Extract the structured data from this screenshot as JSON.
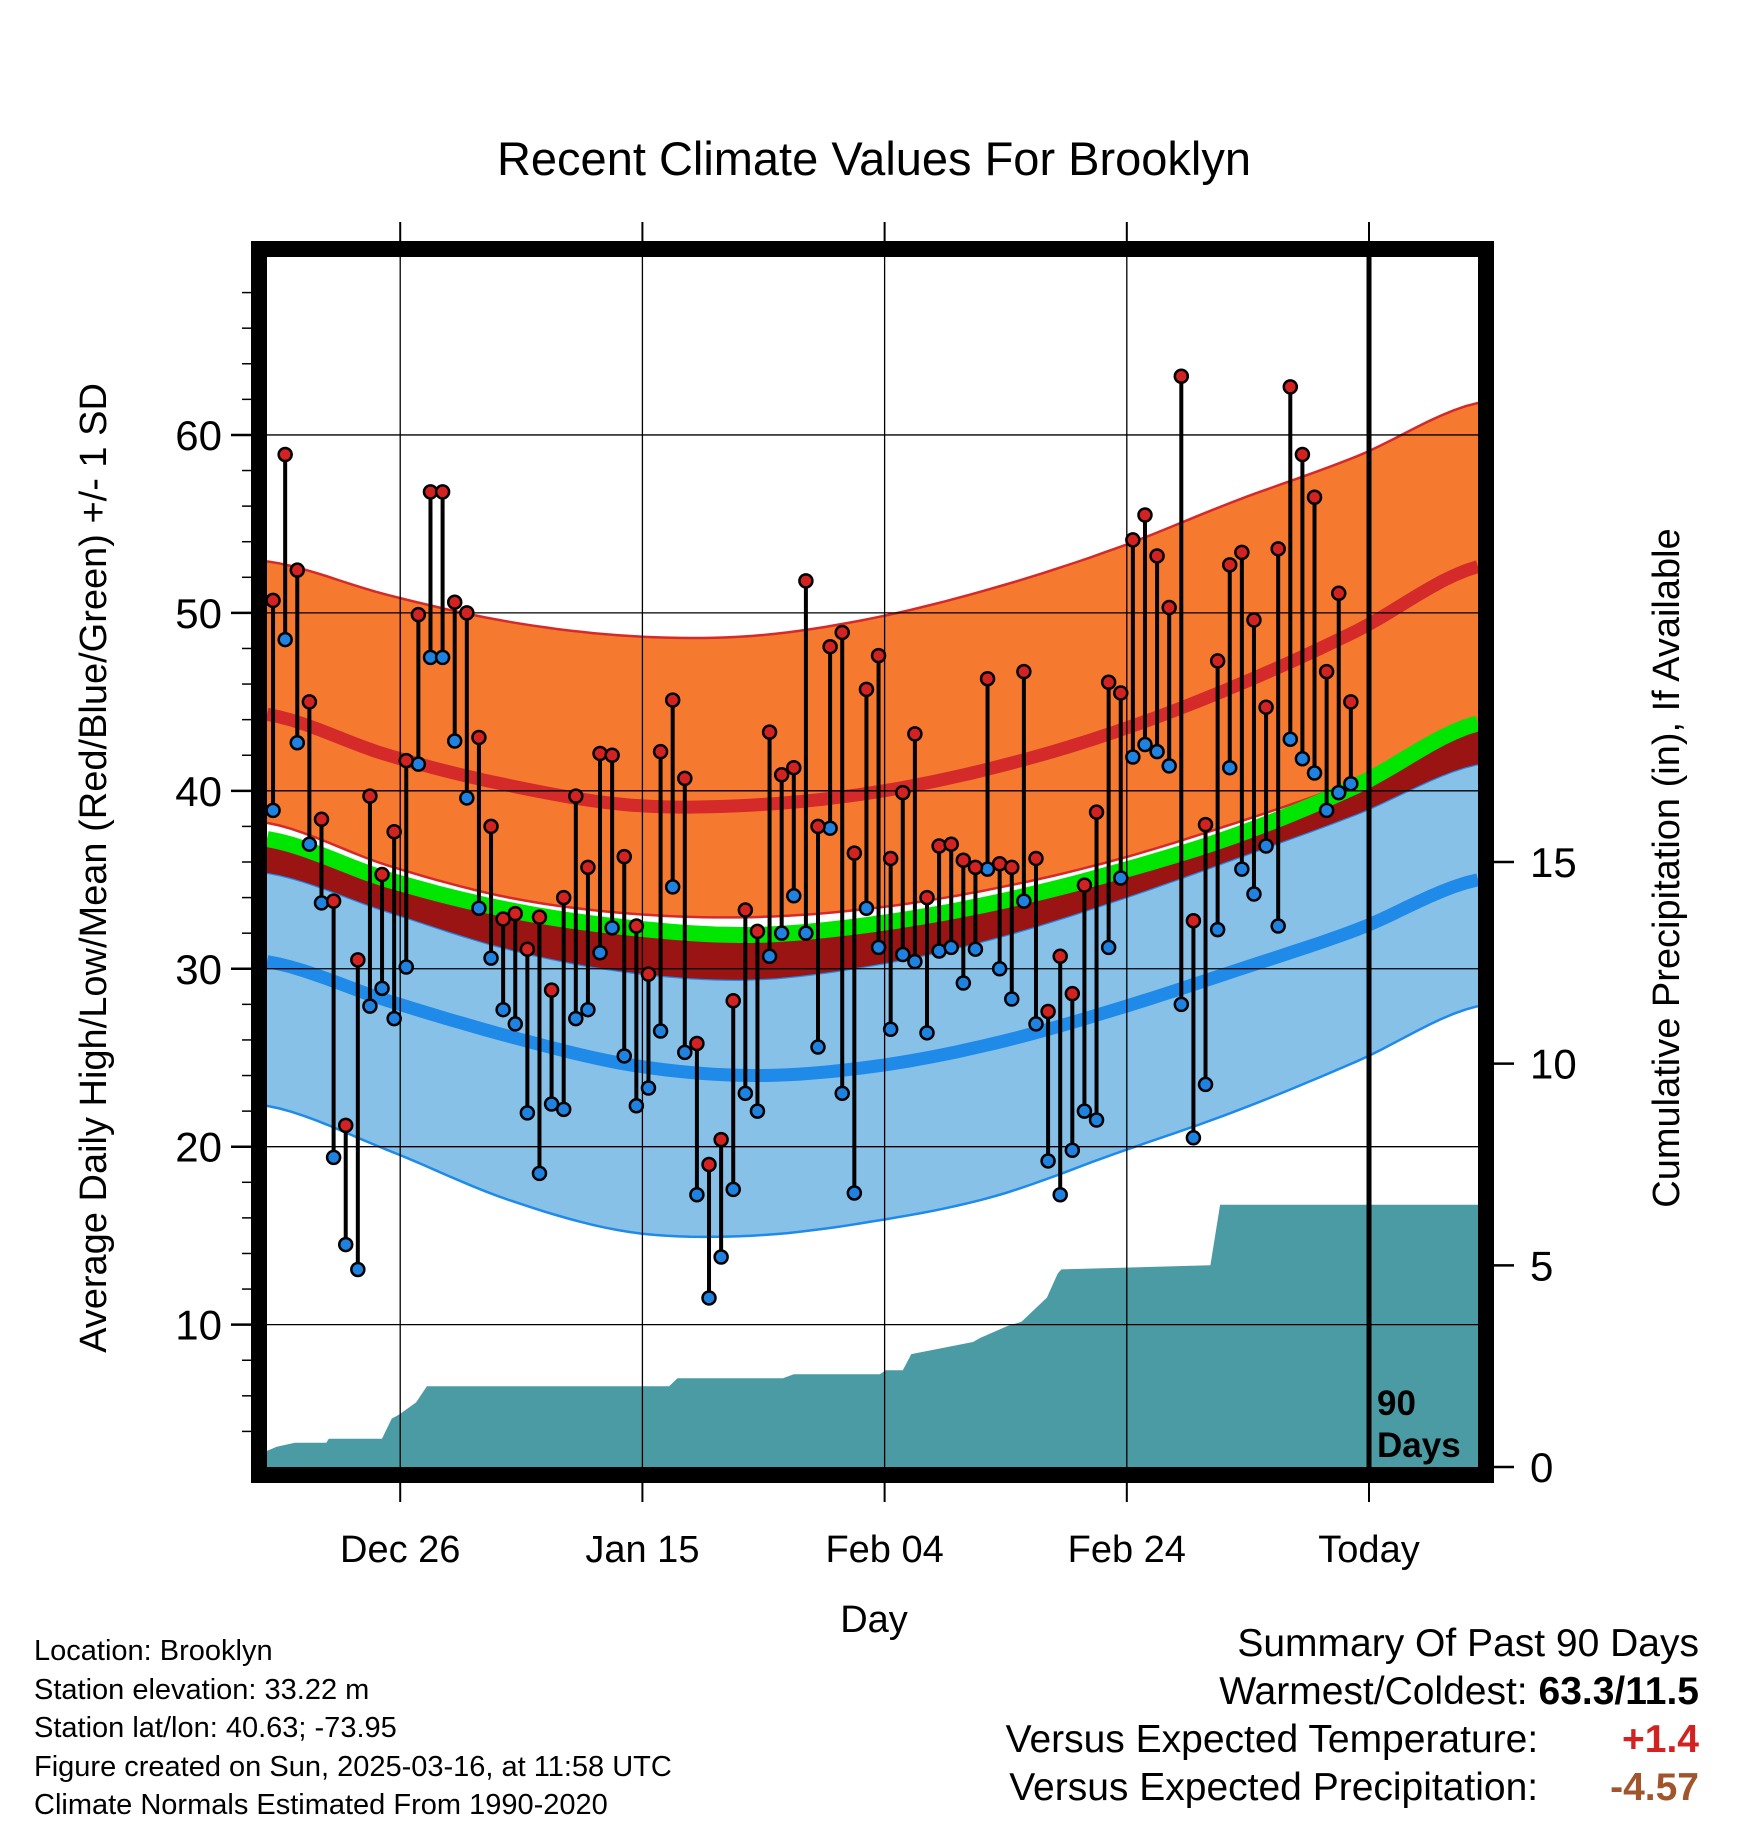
{
  "chart_data": {
    "type": "line",
    "title": "Recent Climate Values For Brooklyn",
    "xlabel": "Day",
    "ylabel": "Average Daily High/Low/Mean (Red/Blue/Green) +/- 1 SD",
    "y2label": "Cumulative Precipitation (in), If Available",
    "xlim": [
      0,
      100
    ],
    "ylim": [
      2,
      70
    ],
    "y2lim": [
      0,
      30
    ],
    "x_ticks": [
      {
        "day": 11,
        "label": "Dec 26"
      },
      {
        "day": 31,
        "label": "Jan 15"
      },
      {
        "day": 51,
        "label": "Feb 04"
      },
      {
        "day": 71,
        "label": "Feb 24"
      },
      {
        "day": 91,
        "label": "Today"
      }
    ],
    "y_ticks": [
      10,
      20,
      30,
      40,
      50,
      60
    ],
    "y2_ticks": [
      0,
      5,
      10,
      15
    ],
    "today_day": 91,
    "window_label_line1": "90",
    "window_label_line2": "Days",
    "normals_days": [
      0,
      10,
      20,
      30,
      40,
      50,
      60,
      70,
      80,
      90,
      100
    ],
    "normal_high_mean": [
      44.3,
      42.0,
      40.3,
      39.2,
      39.2,
      39.9,
      41.3,
      43.3,
      45.9,
      49.0,
      52.6
    ],
    "normal_high_sd_upper": [
      52.9,
      51.0,
      49.5,
      48.7,
      48.7,
      49.7,
      51.4,
      53.6,
      56.3,
      58.8,
      61.8
    ],
    "normal_high_sd_lower": [
      38.2,
      35.8,
      34.0,
      33.1,
      32.9,
      33.4,
      34.5,
      36.1,
      38.2,
      40.6,
      43.7
    ],
    "normal_mean": [
      37.3,
      35.0,
      33.3,
      32.3,
      31.9,
      32.5,
      33.7,
      35.4,
      37.5,
      40.3,
      43.8
    ],
    "normal_low_mean": [
      30.4,
      28.2,
      26.2,
      24.6,
      24.0,
      24.5,
      25.8,
      27.7,
      29.9,
      32.2,
      35.0
    ],
    "normal_low_sd_upper": [
      35.4,
      33.2,
      31.1,
      29.8,
      29.4,
      30.2,
      31.7,
      33.8,
      36.2,
      38.7,
      41.5
    ],
    "normal_low_sd_lower": [
      22.3,
      19.8,
      17.0,
      15.2,
      15.0,
      15.8,
      17.2,
      19.6,
      22.0,
      24.8,
      27.9
    ],
    "daily_high": [
      50.7,
      58.9,
      52.4,
      45.0,
      38.4,
      33.8,
      21.2,
      30.5,
      39.7,
      35.3,
      37.7,
      41.7,
      49.9,
      56.8,
      56.8,
      50.6,
      50.0,
      43.0,
      38.0,
      32.8,
      33.1,
      31.1,
      32.9,
      28.8,
      34.0,
      39.7,
      35.7,
      42.1,
      42.0,
      36.3,
      32.4,
      29.7,
      42.2,
      45.1,
      40.7,
      25.8,
      19.0,
      20.4,
      28.2,
      33.3,
      32.1,
      43.3,
      40.9,
      41.3,
      51.8,
      38.0,
      48.1,
      48.9,
      36.5,
      45.7,
      47.6,
      36.2,
      39.9,
      43.2,
      34.0,
      36.9,
      37.0,
      36.1,
      35.7,
      46.3,
      35.9,
      35.7,
      46.7,
      36.2,
      27.6,
      30.7,
      28.6,
      34.7,
      38.8,
      46.1,
      45.5,
      54.1,
      55.5,
      53.2,
      50.3,
      63.3,
      32.7,
      38.1,
      47.3,
      52.7,
      53.4,
      49.6,
      44.7,
      53.6,
      62.7,
      58.9,
      56.5,
      46.7,
      51.1,
      45.0
    ],
    "daily_low": [
      38.9,
      48.5,
      42.7,
      37.0,
      33.7,
      19.4,
      14.5,
      13.1,
      27.9,
      28.9,
      27.2,
      30.1,
      41.5,
      47.5,
      47.5,
      42.8,
      39.6,
      33.4,
      30.6,
      27.7,
      26.9,
      21.9,
      18.5,
      22.4,
      22.1,
      27.2,
      27.7,
      30.9,
      32.3,
      25.1,
      22.3,
      23.3,
      26.5,
      34.6,
      25.3,
      17.3,
      11.5,
      13.8,
      17.6,
      23.0,
      22.0,
      30.7,
      32.0,
      34.1,
      32.0,
      25.6,
      37.9,
      23.0,
      17.4,
      33.4,
      31.2,
      26.6,
      30.8,
      30.4,
      26.4,
      31.0,
      31.2,
      29.2,
      31.1,
      35.6,
      30.0,
      28.3,
      33.8,
      26.9,
      19.2,
      17.3,
      19.8,
      22.0,
      21.5,
      31.2,
      35.1,
      41.9,
      42.6,
      42.2,
      41.4,
      28.0,
      20.5,
      23.5,
      32.2,
      41.3,
      35.6,
      34.2,
      36.9,
      32.4,
      42.9,
      41.8,
      41.0,
      38.9,
      39.9,
      40.4
    ],
    "precip_days": [
      0,
      0.8,
      2.3,
      4.9,
      5.1,
      9.5,
      10.3,
      10.9,
      12.3,
      13.2,
      15.5,
      33.2,
      33.9,
      42.6,
      43.5,
      44.4,
      50.6,
      51.1,
      52.5,
      53.2,
      58.3,
      58.9,
      61.2,
      62.3,
      64.4,
      65.3,
      65.6,
      77.9,
      78.7,
      100
    ],
    "precip_values": [
      0.4,
      0.5,
      0.6,
      0.6,
      0.7,
      0.7,
      1.2,
      1.3,
      1.6,
      2.0,
      2.0,
      2.0,
      2.2,
      2.2,
      2.3,
      2.3,
      2.3,
      2.4,
      2.4,
      2.8,
      3.1,
      3.2,
      3.5,
      3.6,
      4.2,
      4.8,
      4.9,
      5.0,
      6.5,
      6.5
    ]
  },
  "footer": {
    "location": "Location: Brooklyn",
    "elevation": "Station elevation: 33.22 m",
    "latlon": "Station lat/lon: 40.63; -73.95",
    "created": "Figure created on Sun, 2025-03-16, at 11:58 UTC",
    "normals": "Climate Normals Estimated From 1990-2020"
  },
  "summary": {
    "heading": "Summary Of Past 90 Days",
    "extremes_label": "Warmest/Coldest:",
    "extremes_value": "63.3/11.5",
    "temp_label": "Versus Expected Temperature:",
    "temp_value": "+1.4",
    "precip_label": "Versus Expected Precipitation:",
    "precip_value": "-4.57"
  },
  "colors": {
    "high_band": "#f57a30",
    "high_line": "#d42a2a",
    "low_band": "#87c1e8",
    "low_line": "#1f8ae8",
    "mean_line": "#00e600",
    "mean_below_band": "#9a1414",
    "precip_fill": "#4a9ba3",
    "high_marker": "#d32222",
    "low_marker": "#1f82e0"
  }
}
